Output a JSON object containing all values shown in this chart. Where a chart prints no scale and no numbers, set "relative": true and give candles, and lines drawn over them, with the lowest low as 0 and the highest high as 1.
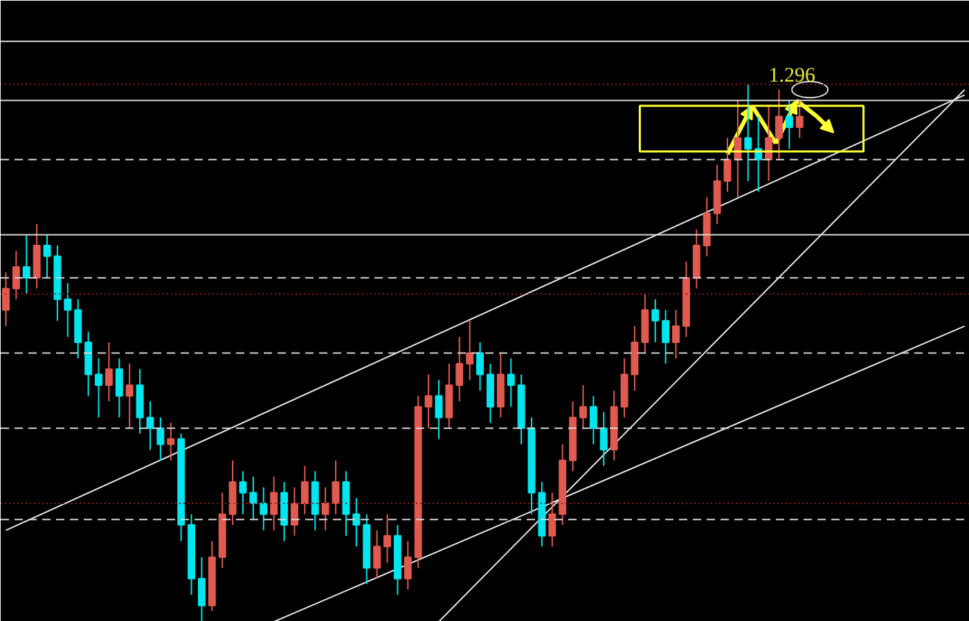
{
  "chart_data": {
    "type": "candlestick",
    "relative": true,
    "grid": false,
    "categories": [
      null,
      null,
      null,
      null,
      null,
      null,
      null,
      null,
      null,
      null,
      null,
      null,
      null,
      null,
      null,
      null,
      null,
      null,
      null,
      null,
      null,
      null,
      null,
      null,
      null,
      null,
      null,
      null,
      null,
      null,
      null,
      null,
      null,
      null,
      null,
      null,
      null,
      null,
      null,
      null,
      null,
      null,
      null,
      null,
      null,
      null,
      null,
      null,
      null,
      null,
      null,
      null,
      null,
      null,
      null,
      null,
      null,
      null,
      null,
      null,
      null,
      null,
      null,
      null,
      null,
      null,
      null,
      null,
      null,
      null,
      null,
      null,
      null,
      null,
      null,
      null,
      null,
      null,
      null,
      null,
      null,
      null,
      null,
      null,
      null,
      null,
      null,
      null,
      null,
      null,
      null,
      null,
      null,
      null
    ],
    "ohlc": [
      [
        0.58,
        0.65,
        0.55,
        0.62
      ],
      [
        0.62,
        0.69,
        0.6,
        0.66
      ],
      [
        0.66,
        0.72,
        0.61,
        0.64
      ],
      [
        0.64,
        0.74,
        0.62,
        0.7
      ],
      [
        0.7,
        0.72,
        0.64,
        0.68
      ],
      [
        0.68,
        0.7,
        0.56,
        0.6
      ],
      [
        0.6,
        0.63,
        0.53,
        0.58
      ],
      [
        0.58,
        0.6,
        0.49,
        0.52
      ],
      [
        0.52,
        0.54,
        0.42,
        0.46
      ],
      [
        0.46,
        0.49,
        0.38,
        0.44
      ],
      [
        0.44,
        0.52,
        0.41,
        0.47
      ],
      [
        0.47,
        0.49,
        0.38,
        0.42
      ],
      [
        0.42,
        0.48,
        0.36,
        0.44
      ],
      [
        0.44,
        0.47,
        0.35,
        0.38
      ],
      [
        0.38,
        0.41,
        0.32,
        0.36
      ],
      [
        0.36,
        0.38,
        0.3,
        0.33
      ],
      [
        0.33,
        0.37,
        0.3,
        0.34
      ],
      [
        0.34,
        0.35,
        0.15,
        0.18
      ],
      [
        0.18,
        0.2,
        0.05,
        0.08
      ],
      [
        0.08,
        0.12,
        0.0,
        0.03
      ],
      [
        0.03,
        0.15,
        0.02,
        0.12
      ],
      [
        0.12,
        0.24,
        0.1,
        0.2
      ],
      [
        0.2,
        0.3,
        0.18,
        0.26
      ],
      [
        0.26,
        0.28,
        0.2,
        0.24
      ],
      [
        0.24,
        0.27,
        0.19,
        0.22
      ],
      [
        0.22,
        0.25,
        0.17,
        0.2
      ],
      [
        0.2,
        0.27,
        0.17,
        0.24
      ],
      [
        0.24,
        0.26,
        0.15,
        0.18
      ],
      [
        0.18,
        0.25,
        0.16,
        0.22
      ],
      [
        0.22,
        0.29,
        0.2,
        0.26
      ],
      [
        0.26,
        0.28,
        0.17,
        0.2
      ],
      [
        0.2,
        0.25,
        0.17,
        0.22
      ],
      [
        0.22,
        0.3,
        0.2,
        0.26
      ],
      [
        0.26,
        0.28,
        0.16,
        0.2
      ],
      [
        0.2,
        0.23,
        0.14,
        0.18
      ],
      [
        0.18,
        0.2,
        0.07,
        0.1
      ],
      [
        0.1,
        0.17,
        0.08,
        0.14
      ],
      [
        0.14,
        0.2,
        0.11,
        0.16
      ],
      [
        0.16,
        0.18,
        0.05,
        0.08
      ],
      [
        0.08,
        0.15,
        0.06,
        0.12
      ],
      [
        0.12,
        0.42,
        0.1,
        0.4
      ],
      [
        0.4,
        0.46,
        0.36,
        0.42
      ],
      [
        0.42,
        0.45,
        0.34,
        0.38
      ],
      [
        0.38,
        0.48,
        0.36,
        0.44
      ],
      [
        0.44,
        0.53,
        0.41,
        0.48
      ],
      [
        0.48,
        0.56,
        0.45,
        0.5
      ],
      [
        0.5,
        0.52,
        0.43,
        0.46
      ],
      [
        0.46,
        0.48,
        0.37,
        0.4
      ],
      [
        0.4,
        0.5,
        0.38,
        0.46
      ],
      [
        0.46,
        0.49,
        0.4,
        0.44
      ],
      [
        0.44,
        0.46,
        0.33,
        0.36
      ],
      [
        0.36,
        0.38,
        0.2,
        0.24
      ],
      [
        0.24,
        0.26,
        0.14,
        0.16
      ],
      [
        0.16,
        0.24,
        0.14,
        0.2
      ],
      [
        0.2,
        0.33,
        0.18,
        0.3
      ],
      [
        0.3,
        0.41,
        0.28,
        0.38
      ],
      [
        0.38,
        0.44,
        0.36,
        0.4
      ],
      [
        0.4,
        0.42,
        0.33,
        0.36
      ],
      [
        0.36,
        0.39,
        0.29,
        0.32
      ],
      [
        0.32,
        0.43,
        0.3,
        0.4
      ],
      [
        0.4,
        0.49,
        0.38,
        0.46
      ],
      [
        0.46,
        0.55,
        0.43,
        0.52
      ],
      [
        0.52,
        0.61,
        0.5,
        0.58
      ],
      [
        0.58,
        0.6,
        0.52,
        0.56
      ],
      [
        0.56,
        0.58,
        0.48,
        0.52
      ],
      [
        0.52,
        0.58,
        0.49,
        0.55
      ],
      [
        0.55,
        0.67,
        0.53,
        0.64
      ],
      [
        0.64,
        0.73,
        0.62,
        0.7
      ],
      [
        0.7,
        0.79,
        0.68,
        0.76
      ],
      [
        0.76,
        0.85,
        0.74,
        0.82
      ],
      [
        0.82,
        0.9,
        0.8,
        0.86
      ],
      [
        0.86,
        0.97,
        0.79,
        0.9
      ],
      [
        0.9,
        1.0,
        0.82,
        0.88
      ],
      [
        0.88,
        0.94,
        0.8,
        0.86
      ],
      [
        0.86,
        0.96,
        0.82,
        0.9
      ],
      [
        0.9,
        0.99,
        0.86,
        0.94
      ],
      [
        0.94,
        0.97,
        0.88,
        0.92
      ],
      [
        0.92,
        0.97,
        0.9,
        0.94
      ],
      null,
      null,
      null,
      null,
      null,
      null,
      null,
      null,
      null,
      null,
      null,
      null,
      null,
      null,
      null,
      null
    ],
    "colors": [
      "#e05a4f",
      "#e05a4f",
      "#00e5ee",
      "#e05a4f",
      "#00e5ee",
      "#00e5ee",
      "#00e5ee",
      "#00e5ee",
      "#00e5ee",
      "#00e5ee",
      "#e05a4f",
      "#00e5ee",
      "#e05a4f",
      "#00e5ee",
      "#00e5ee",
      "#00e5ee",
      "#e05a4f",
      "#00e5ee",
      "#00e5ee",
      "#00e5ee",
      "#e05a4f",
      "#e05a4f",
      "#e05a4f",
      "#00e5ee",
      "#00e5ee",
      "#00e5ee",
      "#e05a4f",
      "#00e5ee",
      "#e05a4f",
      "#e05a4f",
      "#00e5ee",
      "#e05a4f",
      "#e05a4f",
      "#00e5ee",
      "#00e5ee",
      "#00e5ee",
      "#e05a4f",
      "#e05a4f",
      "#00e5ee",
      "#e05a4f",
      "#e05a4f",
      "#e05a4f",
      "#00e5ee",
      "#e05a4f",
      "#e05a4f",
      "#e05a4f",
      "#00e5ee",
      "#00e5ee",
      "#e05a4f",
      "#00e5ee",
      "#00e5ee",
      "#00e5ee",
      "#00e5ee",
      "#e05a4f",
      "#e05a4f",
      "#e05a4f",
      "#e05a4f",
      "#00e5ee",
      "#00e5ee",
      "#e05a4f",
      "#e05a4f",
      "#e05a4f",
      "#e05a4f",
      "#00e5ee",
      "#00e5ee",
      "#e05a4f",
      "#e05a4f",
      "#e05a4f",
      "#e05a4f",
      "#e05a4f",
      "#e05a4f",
      "#e05a4f",
      "#00e5ee",
      "#00e5ee",
      "#e05a4f",
      "#e05a4f",
      "#00e5ee",
      "#e05a4f",
      null,
      null,
      null,
      null,
      null,
      null,
      null,
      null,
      null,
      null,
      null,
      null,
      null,
      null,
      null,
      null
    ],
    "series": [
      {
        "type": "line",
        "color": "#e8e8e8",
        "values": [
          0.17,
          null,
          null,
          null,
          null,
          null,
          null,
          null,
          null,
          null,
          null,
          null,
          null,
          null,
          null,
          null,
          null,
          null,
          null,
          null,
          null,
          null,
          null,
          null,
          null,
          null,
          null,
          null,
          null,
          null,
          null,
          null,
          null,
          null,
          null,
          null,
          null,
          null,
          null,
          null,
          null,
          null,
          null,
          null,
          null,
          null,
          null,
          null,
          null,
          null,
          null,
          null,
          null,
          null,
          null,
          null,
          null,
          null,
          null,
          null,
          null,
          null,
          null,
          null,
          null,
          null,
          null,
          null,
          null,
          null,
          null,
          null,
          null,
          null,
          null,
          null,
          null,
          null,
          null,
          null,
          null,
          null,
          null,
          null,
          null,
          null,
          null,
          null,
          null,
          null,
          null,
          null,
          null,
          0.98
        ]
      },
      {
        "type": "line",
        "color": "#e8e8e8",
        "values": [
          null,
          null,
          null,
          null,
          null,
          null,
          null,
          null,
          null,
          null,
          null,
          null,
          null,
          null,
          null,
          null,
          null,
          null,
          null,
          null,
          null,
          null,
          null,
          null,
          null,
          null,
          0.0,
          null,
          null,
          null,
          null,
          null,
          null,
          null,
          null,
          null,
          null,
          null,
          null,
          null,
          null,
          null,
          null,
          null,
          null,
          null,
          null,
          null,
          null,
          null,
          null,
          null,
          null,
          null,
          null,
          null,
          null,
          null,
          null,
          null,
          null,
          null,
          null,
          null,
          null,
          null,
          null,
          null,
          null,
          null,
          null,
          null,
          null,
          null,
          null,
          null,
          null,
          null,
          null,
          null,
          null,
          null,
          null,
          null,
          null,
          null,
          null,
          null,
          null,
          null,
          null,
          null,
          null,
          0.55
        ]
      },
      {
        "type": "line",
        "color": "#e8e8e8",
        "values": [
          null,
          null,
          null,
          null,
          null,
          null,
          null,
          null,
          null,
          null,
          null,
          null,
          null,
          null,
          null,
          null,
          null,
          null,
          null,
          null,
          null,
          null,
          null,
          null,
          null,
          null,
          null,
          null,
          null,
          null,
          null,
          null,
          null,
          null,
          null,
          null,
          null,
          null,
          null,
          null,
          null,
          null,
          0.0,
          null,
          null,
          null,
          null,
          null,
          null,
          null,
          null,
          null,
          null,
          null,
          null,
          null,
          null,
          null,
          null,
          null,
          null,
          null,
          null,
          null,
          null,
          null,
          null,
          null,
          null,
          null,
          null,
          null,
          null,
          null,
          null,
          null,
          null,
          null,
          null,
          null,
          null,
          null,
          null,
          null,
          null,
          null,
          null,
          null,
          null,
          null,
          null,
          null,
          null,
          0.99
        ]
      }
    ],
    "ref_lines": [
      {
        "axis": "y",
        "value": 1.08,
        "color": "#d8d8d8",
        "line_style": "solid"
      },
      {
        "axis": "y",
        "value": 1.0,
        "color": "#8b1a1a",
        "line_style": "dotted"
      },
      {
        "axis": "y",
        "value": 0.97,
        "color": "#d8d8d8",
        "line_style": "solid"
      },
      {
        "axis": "y",
        "value": 0.86,
        "color": "#d8d8d8",
        "line_style": "dashed"
      },
      {
        "axis": "y",
        "value": 0.72,
        "color": "#d8d8d8",
        "line_style": "solid"
      },
      {
        "axis": "y",
        "value": 0.64,
        "color": "#d8d8d8",
        "line_style": "dashed"
      },
      {
        "axis": "y",
        "value": 0.61,
        "color": "#8b1a1a",
        "line_style": "dotted"
      },
      {
        "axis": "y",
        "value": 0.5,
        "color": "#d8d8d8",
        "line_style": "dashed"
      },
      {
        "axis": "y",
        "value": 0.36,
        "color": "#d8d8d8",
        "line_style": "dashed"
      },
      {
        "axis": "y",
        "value": 0.22,
        "color": "#8b1a1a",
        "line_style": "dotted"
      },
      {
        "axis": "y",
        "value": 0.19,
        "color": "#d8d8d8",
        "line_style": "dashed"
      }
    ],
    "annotations": [
      "1.296"
    ]
  }
}
